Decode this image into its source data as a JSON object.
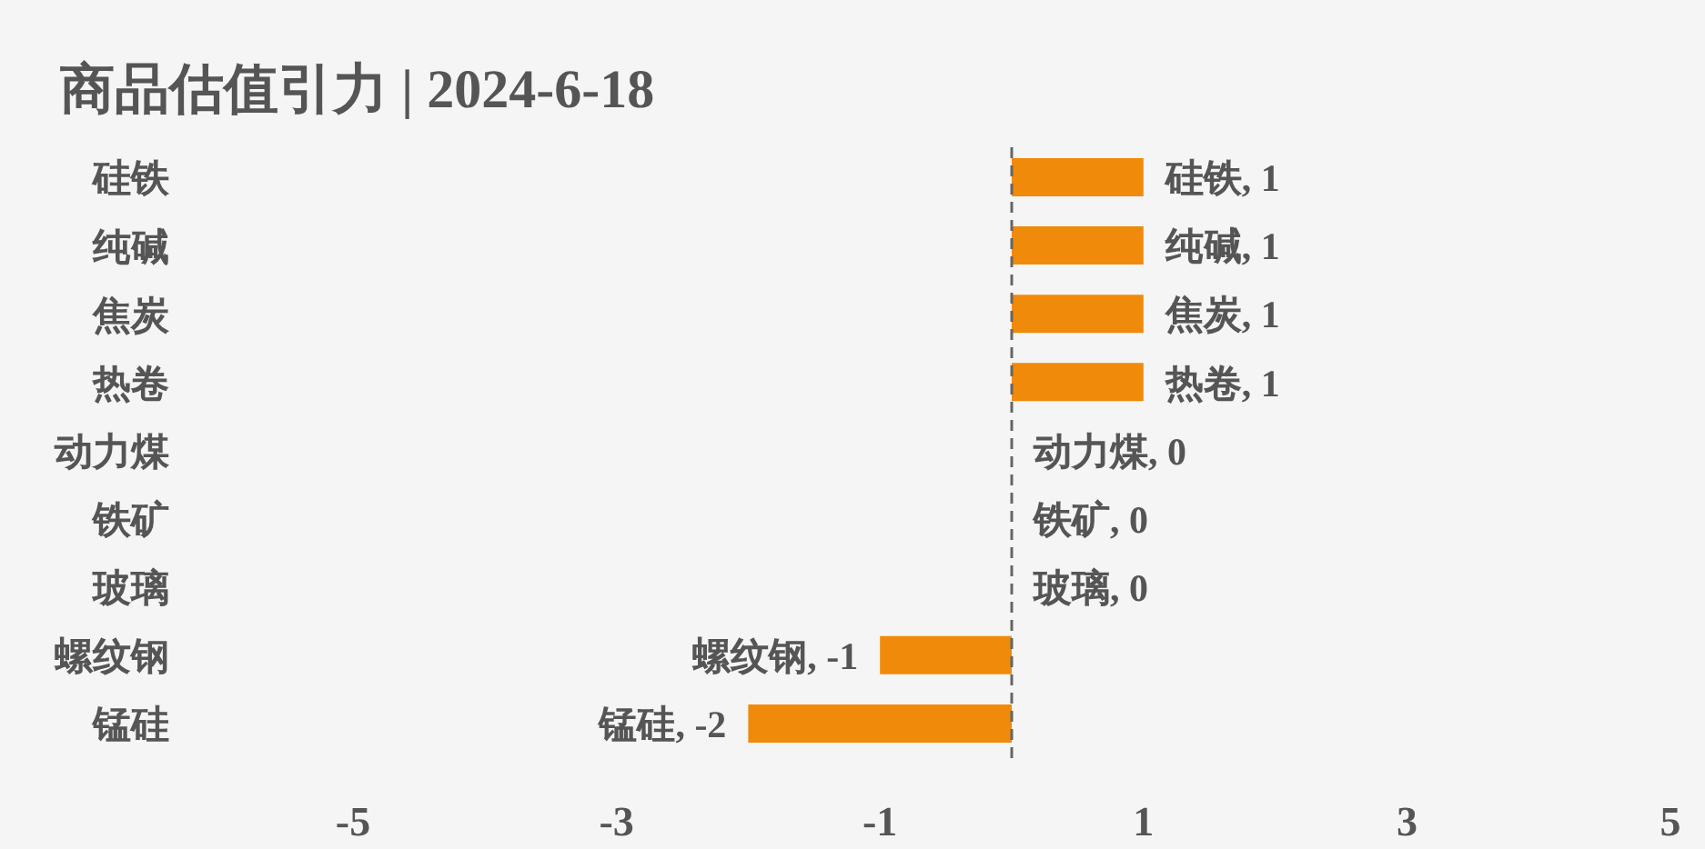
{
  "chart_data": {
    "type": "bar",
    "orientation": "horizontal",
    "title": "商品估值引力 | 2024-6-18",
    "categories": [
      "硅铁",
      "纯碱",
      "焦炭",
      "热卷",
      "动力煤",
      "铁矿",
      "玻璃",
      "螺纹钢",
      "锰硅"
    ],
    "values": [
      1,
      1,
      1,
      1,
      0,
      0,
      0,
      -1,
      -2
    ],
    "color": "#f08a0a",
    "value_labels": [
      "硅铁, 1",
      "纯碱, 1",
      "焦炭, 1",
      "热卷, 1",
      "动力煤, 0",
      "铁矿, 0",
      "玻璃, 0",
      "螺纹钢, -1",
      "锰硅, -2"
    ],
    "xlim": [
      -5,
      5
    ],
    "xticks": [
      -5,
      -3,
      -1,
      1,
      3,
      5
    ],
    "ref_lines": [
      {
        "axis": "x",
        "value": 0,
        "color": "#666666",
        "line_style": "dashed"
      }
    ]
  }
}
